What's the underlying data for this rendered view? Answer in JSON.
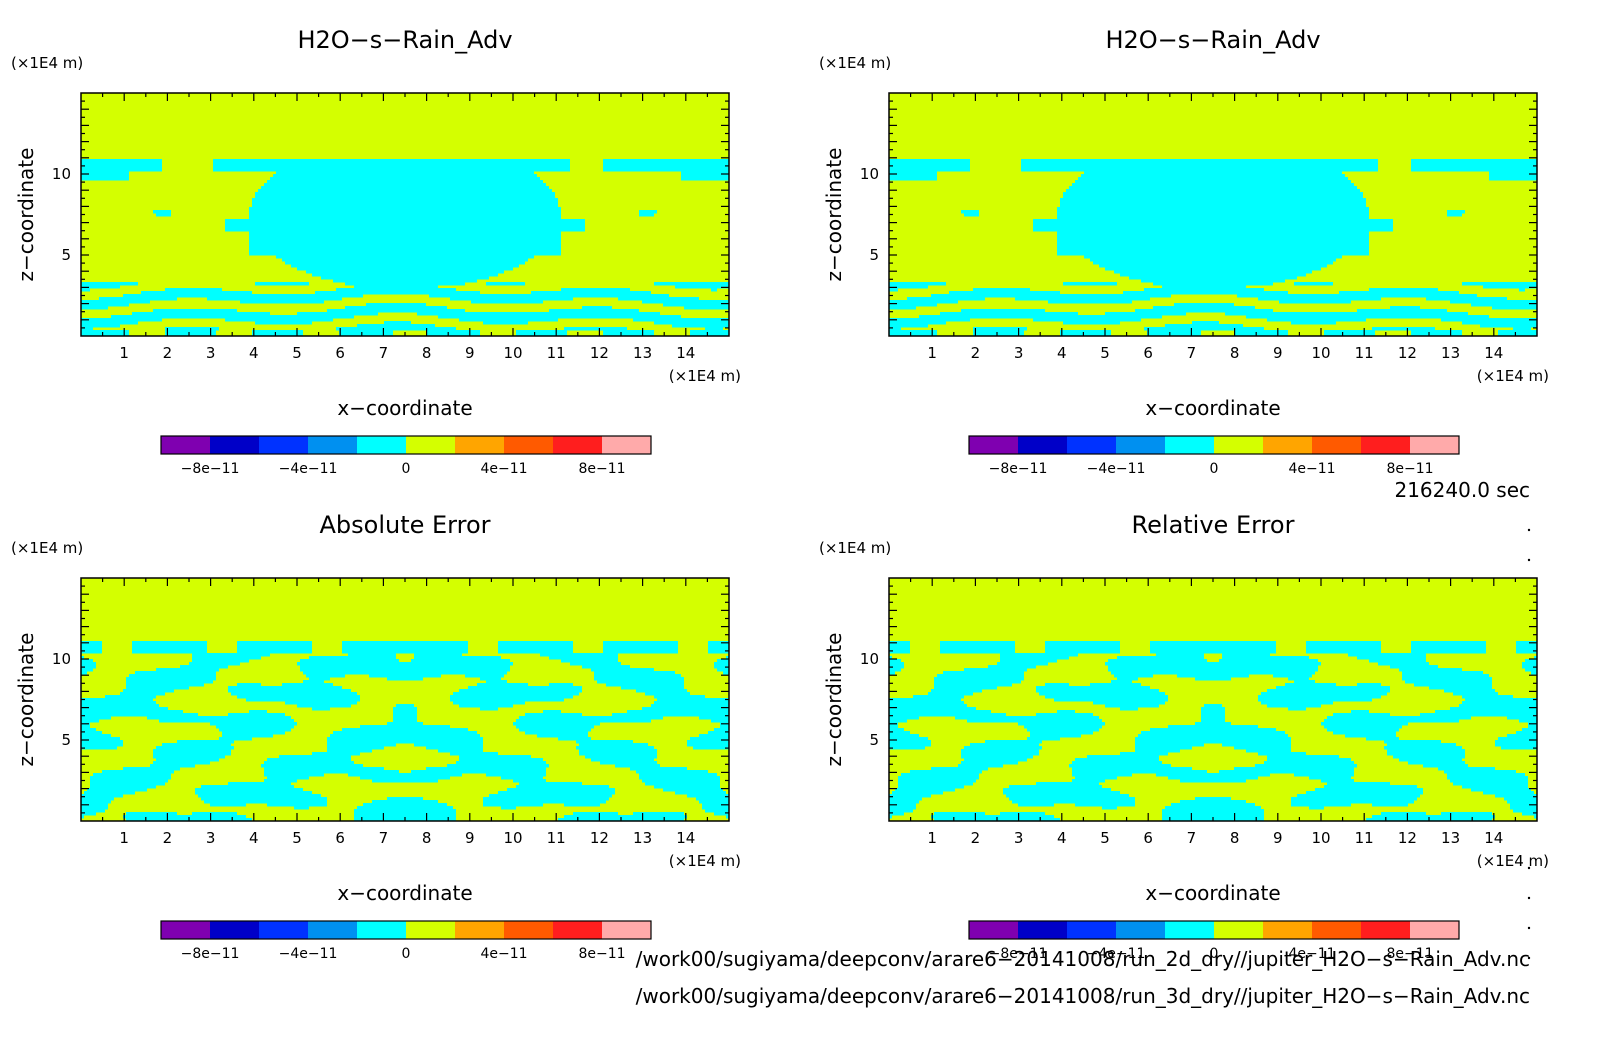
{
  "colors": {
    "background_field": "#d4ff00",
    "secondary_field": "#00ffff",
    "frame": "#000000"
  },
  "colorbar": {
    "colors": [
      "#7f00b0",
      "#0000c8",
      "#0032ff",
      "#0090f0",
      "#00ffff",
      "#d4ff00",
      "#ffa500",
      "#ff5a00",
      "#ff1e1e",
      "#ffaaaa"
    ],
    "boundaries": [
      -1e-10,
      -8e-11,
      -6e-11,
      -4e-11,
      -2e-11,
      0,
      2e-11,
      4e-11,
      6e-11,
      8e-11,
      1e-10
    ],
    "tick_labels": [
      "−8e−11",
      "−4e−11",
      "0",
      "4e−11",
      "8e−11"
    ]
  },
  "chart_data": [
    {
      "type": "heatmap",
      "title": "H2O−s−Rain_Adv",
      "xlabel": "x−coordinate",
      "ylabel": "z−coordinate",
      "x_unit": "(×1E4 m)",
      "y_unit": "(×1E4 m)",
      "xlim": [
        0,
        15
      ],
      "ylim": [
        0,
        15
      ],
      "x_ticks": [
        1,
        2,
        3,
        4,
        5,
        6,
        7,
        8,
        9,
        10,
        11,
        12,
        13,
        14
      ],
      "y_ticks": [
        5,
        10
      ],
      "levels": [
        "0",
        "4e−11"
      ],
      "pattern": "smooth",
      "top_band_z": 11
    },
    {
      "type": "heatmap",
      "title": "H2O−s−Rain_Adv",
      "xlabel": "x−coordinate",
      "ylabel": "z−coordinate",
      "x_unit": "(×1E4 m)",
      "y_unit": "(×1E4 m)",
      "xlim": [
        0,
        15
      ],
      "ylim": [
        0,
        15
      ],
      "x_ticks": [
        1,
        2,
        3,
        4,
        5,
        6,
        7,
        8,
        9,
        10,
        11,
        12,
        13,
        14
      ],
      "y_ticks": [
        5,
        10
      ],
      "levels": [
        "0",
        "4e−11"
      ],
      "pattern": "smooth",
      "top_band_z": 11
    },
    {
      "type": "heatmap",
      "title": "Absolute Error",
      "xlabel": "x−coordinate",
      "ylabel": "z−coordinate",
      "x_unit": "(×1E4 m)",
      "y_unit": "(×1E4 m)",
      "xlim": [
        0,
        15
      ],
      "ylim": [
        0,
        15
      ],
      "x_ticks": [
        1,
        2,
        3,
        4,
        5,
        6,
        7,
        8,
        9,
        10,
        11,
        12,
        13,
        14
      ],
      "y_ticks": [
        5,
        10
      ],
      "levels": [
        "0",
        "4e−11"
      ],
      "pattern": "noisy",
      "top_band_z": 11.2
    },
    {
      "type": "heatmap",
      "title": "Relative Error",
      "xlabel": "x−coordinate",
      "ylabel": "z−coordinate",
      "x_unit": "(×1E4 m)",
      "y_unit": "(×1E4 m)",
      "xlim": [
        0,
        15
      ],
      "ylim": [
        0,
        15
      ],
      "x_ticks": [
        1,
        2,
        3,
        4,
        5,
        6,
        7,
        8,
        9,
        10,
        11,
        12,
        13,
        14
      ],
      "y_ticks": [
        5,
        10
      ],
      "levels": [
        "0",
        "4e−11"
      ],
      "pattern": "noisy",
      "top_band_z": 11.2
    }
  ],
  "time_label": "216240.0 sec",
  "file_paths": [
    "/work00/sugiyama/deepconv/arare6−20141008/run_2d_dry//jupiter_H2O−s−Rain_Adv.nc",
    "/work00/sugiyama/deepconv/arare6−20141008/run_3d_dry//jupiter_H2O−s−Rain_Adv.nc"
  ]
}
